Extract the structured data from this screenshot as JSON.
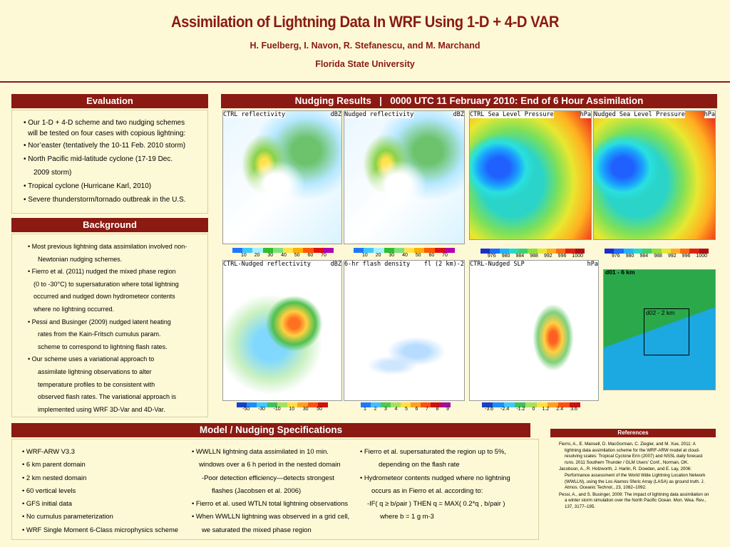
{
  "header": {
    "title": "Assimilation of Lightning Data In WRF Using 1-D + 4-D VAR",
    "authors": "H. Fuelberg, I. Navon, R. Stefanescu, and M. Marchand",
    "affiliation": "Florida State University"
  },
  "evaluation": {
    "heading": "Evaluation",
    "items": [
      "• Our 1-D + 4-D scheme and two nudging schemes",
      "will be tested on four cases with copious lightning:",
      "• Nor’easter (tentatively the 10-11 Feb. 2010 storm)",
      "• North Pacific mid-latitude cyclone (17-19 Dec.",
      "2009 storm)",
      "• Tropical cyclone (Hurricane Karl, 2010)",
      "• Severe thunderstorm/tornado outbreak in the U.S."
    ]
  },
  "background": {
    "heading": "Background",
    "items": [
      "• Most previous lightning data assimilation involved non-",
      "Newtonian nudging schemes.",
      "• Fierro et al. (2011) nudged the mixed phase region",
      "(0 to -30°C) to supersaturation where total lightning",
      "occurred and nudged down hydrometeor contents",
      "where no lightning occurred.",
      "• Pessi and Businger (2009) nudged latent heating",
      "rates from the Kain-Fritsch cumulus param.",
      "scheme to correspond to lightning flash rates.",
      "• Our scheme uses a variational approach to",
      "assimilate lightning observations to alter",
      "temperature profiles to be consistent with",
      "observed flash rates. The variational approach is",
      "implemented using WRF 3D-Var and 4D-Var."
    ]
  },
  "nudging": {
    "heading": "Nudging Results   |   0000 UTC 11 February 2010: End of 6 Hour Assimilation",
    "panels": [
      {
        "label": "CTRL reflectivity",
        "unit": "dBZ"
      },
      {
        "label": "Nudged reflectivity",
        "unit": "dBZ"
      },
      {
        "label": "CTRL Sea Level Pressure",
        "unit": "hPa"
      },
      {
        "label": "Nudged Sea Level Pressure",
        "unit": "hPa"
      },
      {
        "label": "CTRL-Nudged reflectivity",
        "unit": "dBZ"
      },
      {
        "label": "6-hr flash density",
        "unit": "fl (2 km)-2"
      },
      {
        "label": "CTRL-Nudged SLP",
        "unit": "hPa"
      }
    ],
    "refl_ticks": [
      "10",
      "20",
      "30",
      "40",
      "50",
      "60",
      "70"
    ],
    "slp_ticks": [
      "976",
      "980",
      "984",
      "988",
      "992",
      "996",
      "1000"
    ],
    "diff_refl_ticks": [
      "-50",
      "-30",
      "-10",
      "10",
      "30",
      "50"
    ],
    "flash_ticks": [
      "1",
      "2",
      "3",
      "4",
      "5",
      "6",
      "7",
      "8",
      "9"
    ],
    "diff_slp_ticks": [
      "-3.6",
      "-2.4",
      "-1.2",
      "0",
      "1.2",
      "2.4",
      "3.6"
    ],
    "domain_labels": {
      "d01": "d01 - 6 km",
      "d02": "d02 - 2 km"
    }
  },
  "model": {
    "heading": "Model / Nudging Specifications",
    "col1": [
      "• WRF-ARW V3.3",
      "• 6 km parent domain",
      "• 2 km nested domain",
      "• 60 vertical levels",
      "• GFS initial data",
      "• No cumulus parameterization",
      "• WRF Single Moment 6-Class microphysics scheme"
    ],
    "col2": [
      "• WWLLN lightning data assimilated in 10 min.",
      "windows over a 6 h period in the nested domain",
      "-Poor detection efficiency—detects strongest",
      "flashes (Jacobsen et al. 2006)",
      "• Fierro et al. used WTLN total lightning observations",
      "• When WWLLN lightning was observed in a grid cell,",
      "we saturated the mixed phase region"
    ],
    "col3": [
      "• Fierro et al. supersaturated the region up to 5%,",
      "depending on the flash rate",
      "• Hydrometeor contents nudged where no lightning",
      "occurs as in Fierro et al. according to:",
      "-IF( q ≥ b/ρair ) THEN q = MAX( 0.2*q , b/ρair )",
      "where b = 1 g m-3"
    ]
  },
  "references": {
    "heading": "References",
    "items": [
      "Fierro, A., E. Mansell, D. MacGorman, C. Ziegler, and M. Xue, 2011: A lightning data assimilation scheme for the WRF-ARW model at cloud-resolving scales: Tropical Cyclone Erin (2007) and NSSL daily forecast runs. 2011 Southern Thunder / GLM Users' Conf., Norman, OK.",
      "Jacobson, A., R. Holzworth, J. Harlin, R. Dowden, and E. Lay, 2006: Performance assessment of the World Wide Lightning Location Network (WWLLN), using the Los Alamos Sferic Array (LASA) as ground truth. J. Atmos. Oceanic Technol., 23, 1082–1092.",
      "Pessi, A., and S. Businger, 2009: The impact of lightning data assimilation on a winter storm simulation over the North Pacific Ocean. Mon. Wea. Rev., 137, 3177–195."
    ]
  },
  "colors": {
    "accent": "#8a1a12",
    "panel_bg": "#fdf9d6"
  }
}
